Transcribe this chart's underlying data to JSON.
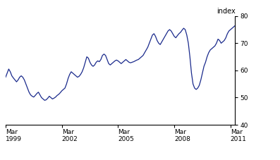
{
  "title": "",
  "ylabel": "index",
  "ylim": [
    40,
    80
  ],
  "yticks": [
    40,
    50,
    60,
    70,
    80
  ],
  "xtick_labels": [
    "Mar\n1999",
    "Mar\n2002",
    "Mar\n2005",
    "Mar\n2008",
    "Mar\n2011"
  ],
  "xtick_positions": [
    0,
    36,
    72,
    108,
    144
  ],
  "line_color": "#1a2a8c",
  "line_width": 0.9,
  "background_color": "#ffffff",
  "data_y": [
    57.5,
    59.0,
    60.5,
    59.5,
    58.0,
    57.2,
    56.5,
    55.8,
    56.5,
    57.5,
    58.0,
    57.5,
    56.5,
    55.0,
    53.5,
    52.0,
    51.0,
    50.5,
    50.2,
    50.8,
    51.5,
    52.0,
    51.0,
    50.0,
    49.5,
    49.0,
    49.2,
    49.8,
    50.5,
    50.0,
    49.5,
    49.8,
    50.2,
    50.8,
    51.2,
    51.8,
    52.5,
    53.0,
    53.5,
    55.0,
    57.0,
    58.5,
    59.5,
    59.0,
    58.5,
    58.0,
    57.5,
    57.8,
    58.5,
    59.5,
    61.0,
    63.0,
    65.0,
    64.5,
    63.0,
    62.0,
    61.5,
    62.0,
    63.0,
    63.5,
    63.2,
    64.0,
    65.5,
    66.0,
    65.5,
    64.0,
    62.5,
    62.0,
    62.5,
    63.0,
    63.5,
    63.8,
    63.5,
    63.0,
    62.5,
    63.0,
    63.5,
    64.0,
    63.5,
    63.0,
    62.8,
    63.0,
    63.2,
    63.5,
    63.8,
    64.0,
    64.5,
    65.0,
    65.5,
    66.5,
    67.5,
    68.5,
    70.0,
    71.5,
    73.0,
    73.5,
    72.5,
    71.0,
    70.0,
    69.5,
    70.5,
    71.5,
    72.5,
    73.5,
    74.5,
    75.0,
    74.5,
    73.5,
    72.5,
    72.0,
    72.8,
    73.5,
    74.0,
    74.8,
    75.5,
    75.0,
    73.0,
    70.0,
    65.0,
    59.0,
    55.0,
    53.5,
    53.0,
    53.5,
    54.5,
    56.5,
    59.0,
    61.5,
    63.0,
    65.0,
    66.5,
    67.5,
    68.0,
    68.5,
    69.0,
    70.0,
    71.5,
    71.0,
    70.0,
    70.5,
    71.0,
    72.0,
    73.5,
    74.5,
    75.0,
    75.5,
    76.0,
    76.5
  ]
}
